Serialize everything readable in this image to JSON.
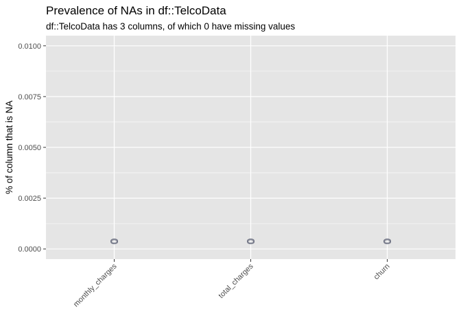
{
  "chart_data": {
    "type": "bar",
    "title": "Prevalence of NAs in df::TelcoData",
    "subtitle": "df::TelcoData has 3 columns, of which 0 have missing values",
    "xlabel": "",
    "ylabel": "% of column that is NA",
    "categories": [
      "monthly_charges",
      "total_charges",
      "churn"
    ],
    "values": [
      0,
      0,
      0
    ],
    "data_labels": [
      "0",
      "0",
      "0"
    ],
    "ylim": [
      -0.0005,
      0.0105
    ],
    "yticks": [
      0.0,
      0.0025,
      0.005,
      0.0075,
      0.01
    ],
    "ytick_labels": [
      "0.0000",
      "0.0025",
      "0.0050",
      "0.0075",
      "0.0100"
    ],
    "grid": true,
    "legend": "none",
    "colors": {
      "panel_background": "#e5e5e5",
      "grid_line": "#ffffff",
      "tick_text": "#4d4d4d",
      "data_label_outline": "#6b6f80"
    }
  }
}
